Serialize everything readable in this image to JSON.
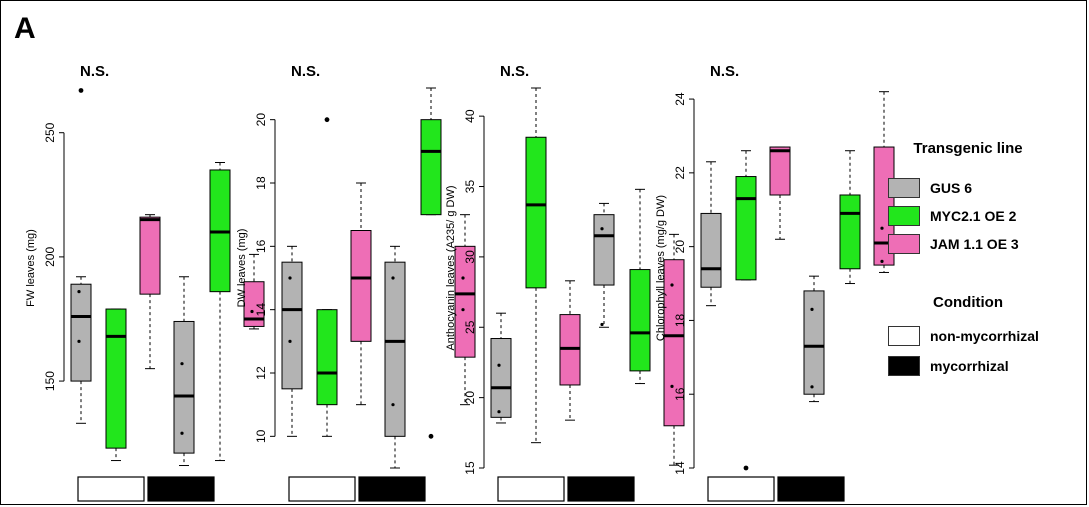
{
  "panel_label": "A",
  "colors": {
    "gus": "#b3b3b3",
    "myc": "#22e61c",
    "jam": "#ee6eb6",
    "non_mycorrhizal": "#ffffff",
    "mycorrhizal": "#000000"
  },
  "legend": {
    "transgenic_title": "Transgenic line",
    "lines": [
      {
        "label": "GUS 6",
        "color": "#b3b3b3"
      },
      {
        "label": "MYC2.1 OE 2",
        "color": "#22e61c"
      },
      {
        "label": "JAM 1.1 OE 3",
        "color": "#ee6eb6"
      }
    ],
    "condition_title": "Condition",
    "conditions": [
      {
        "label": "non-mycorrhizal",
        "color": "#ffffff"
      },
      {
        "label": "mycorrhizal",
        "color": "#000000"
      }
    ]
  },
  "chart_data": [
    {
      "type": "box",
      "annotation": "N.S.",
      "ylabel": "FW leaves (mg)",
      "yticks": [
        150,
        200,
        250
      ],
      "ylim": [
        115,
        268
      ],
      "groups": [
        "GUS 6",
        "MYC2.1 OE 2",
        "JAM 1.1 OE 3",
        "GUS 6",
        "MYC2.1 OE 2",
        "JAM 1.1 OE 3"
      ],
      "conditions": [
        "non-mycorrhizal",
        "non-mycorrhizal",
        "non-mycorrhizal",
        "mycorrhizal",
        "mycorrhizal",
        "mycorrhizal"
      ],
      "boxes": [
        {
          "min": 133,
          "q1": 150,
          "median": 176,
          "q3": 189,
          "max": 192,
          "points": [
            166,
            186
          ],
          "outliers": [
            267
          ]
        },
        {
          "min": 118,
          "q1": 123,
          "median": 168,
          "q3": 179,
          "max": 179,
          "points": [],
          "outliers": []
        },
        {
          "min": 155,
          "q1": 185,
          "median": 215,
          "q3": 216,
          "max": 217,
          "points": [],
          "outliers": []
        },
        {
          "min": 116,
          "q1": 121,
          "median": 144,
          "q3": 174,
          "max": 192,
          "points": [
            129,
            157
          ],
          "outliers": []
        },
        {
          "min": 118,
          "q1": 186,
          "median": 210,
          "q3": 235,
          "max": 238,
          "points": [],
          "outliers": []
        },
        {
          "min": 171,
          "q1": 172,
          "median": 175,
          "q3": 190,
          "max": 201,
          "points": [
            178
          ],
          "outliers": []
        }
      ]
    },
    {
      "type": "box",
      "annotation": "N.S.",
      "ylabel": "DW leaves (mg)",
      "yticks": [
        10,
        12,
        14,
        16,
        18,
        20
      ],
      "ylim": [
        9,
        21
      ],
      "groups": [
        "GUS 6",
        "MYC2.1 OE 2",
        "JAM 1.1 OE 3",
        "GUS 6",
        "MYC2.1 OE 2",
        "JAM 1.1 OE 3"
      ],
      "conditions": [
        "non-mycorrhizal",
        "non-mycorrhizal",
        "non-mycorrhizal",
        "mycorrhizal",
        "mycorrhizal",
        "mycorrhizal"
      ],
      "boxes": [
        {
          "min": 10,
          "q1": 11.5,
          "median": 14,
          "q3": 15.5,
          "max": 16,
          "points": [
            13,
            15
          ],
          "outliers": []
        },
        {
          "min": 10,
          "q1": 11,
          "median": 12,
          "q3": 14,
          "max": 14,
          "points": [],
          "outliers": [
            20
          ]
        },
        {
          "min": 11,
          "q1": 13,
          "median": 15,
          "q3": 16.5,
          "max": 18,
          "points": [],
          "outliers": []
        },
        {
          "min": 9,
          "q1": 10,
          "median": 13,
          "q3": 15.5,
          "max": 16,
          "points": [
            11,
            15
          ],
          "outliers": []
        },
        {
          "min": 17,
          "q1": 17,
          "median": 19,
          "q3": 20,
          "max": 21,
          "points": [],
          "outliers": [
            10
          ]
        },
        {
          "min": 11,
          "q1": 12.5,
          "median": 14.5,
          "q3": 16,
          "max": 17,
          "points": [
            14,
            15
          ],
          "outliers": []
        }
      ]
    },
    {
      "type": "box",
      "annotation": "N.S.",
      "ylabel": "Anthocyanin leaves (A235/ g DW)",
      "yticks": [
        15,
        20,
        25,
        30,
        35,
        40
      ],
      "ylim": [
        15,
        42
      ],
      "groups": [
        "GUS 6",
        "MYC2.1 OE 2",
        "JAM 1.1 OE 3",
        "GUS 6",
        "MYC2.1 OE 2",
        "JAM 1.1 OE 3"
      ],
      "conditions": [
        "non-mycorrhizal",
        "non-mycorrhizal",
        "non-mycorrhizal",
        "mycorrhizal",
        "mycorrhizal",
        "mycorrhizal"
      ],
      "boxes": [
        {
          "min": 18.2,
          "q1": 18.6,
          "median": 20.7,
          "q3": 24.2,
          "max": 26,
          "points": [
            19,
            22.3
          ],
          "outliers": []
        },
        {
          "min": 16.8,
          "q1": 27.8,
          "median": 33.7,
          "q3": 38.5,
          "max": 42,
          "points": [],
          "outliers": []
        },
        {
          "min": 18.4,
          "q1": 20.9,
          "median": 23.5,
          "q3": 25.9,
          "max": 28.3,
          "points": [],
          "outliers": []
        },
        {
          "min": 25,
          "q1": 28,
          "median": 31.5,
          "q3": 33,
          "max": 33.8,
          "points": [
            25.2,
            32
          ],
          "outliers": []
        },
        {
          "min": 21,
          "q1": 21.9,
          "median": 24.6,
          "q3": 29.1,
          "max": 34.8,
          "points": [],
          "outliers": []
        },
        {
          "min": 15.2,
          "q1": 18,
          "median": 24.4,
          "q3": 29.8,
          "max": 31.6,
          "points": [
            20.8,
            28
          ],
          "outliers": []
        }
      ]
    },
    {
      "type": "box",
      "annotation": "N.S.",
      "ylabel": "Chlorophyll leaves (mg/g DW)",
      "yticks": [
        14,
        16,
        18,
        20,
        22,
        24
      ],
      "ylim": [
        14,
        24.3
      ],
      "groups": [
        "GUS 6",
        "MYC2.1 OE 2",
        "JAM 1.1 OE 3",
        "GUS 6",
        "MYC2.1 OE 2",
        "JAM 1.1 OE 3"
      ],
      "conditions": [
        "non-mycorrhizal",
        "non-mycorrhizal",
        "non-mycorrhizal",
        "mycorrhizal",
        "mycorrhizal",
        "mycorrhizal"
      ],
      "boxes": [
        {
          "min": 18.4,
          "q1": 18.9,
          "median": 19.4,
          "q3": 20.9,
          "max": 22.3,
          "points": [],
          "outliers": []
        },
        {
          "min": 19.1,
          "q1": 19.1,
          "median": 21.3,
          "q3": 21.9,
          "max": 22.6,
          "points": [],
          "outliers": [
            14
          ]
        },
        {
          "min": 20.2,
          "q1": 21.4,
          "median": 22.6,
          "q3": 22.7,
          "max": 22.7,
          "points": [],
          "outliers": []
        },
        {
          "min": 15.8,
          "q1": 16,
          "median": 17.3,
          "q3": 18.8,
          "max": 19.2,
          "points": [
            16.2,
            18.3
          ],
          "outliers": []
        },
        {
          "min": 19,
          "q1": 19.4,
          "median": 20.9,
          "q3": 21.4,
          "max": 22.6,
          "points": [],
          "outliers": []
        },
        {
          "min": 19.3,
          "q1": 19.5,
          "median": 20.1,
          "q3": 22.7,
          "max": 24.2,
          "points": [
            19.6,
            20.5
          ],
          "outliers": []
        }
      ]
    }
  ]
}
